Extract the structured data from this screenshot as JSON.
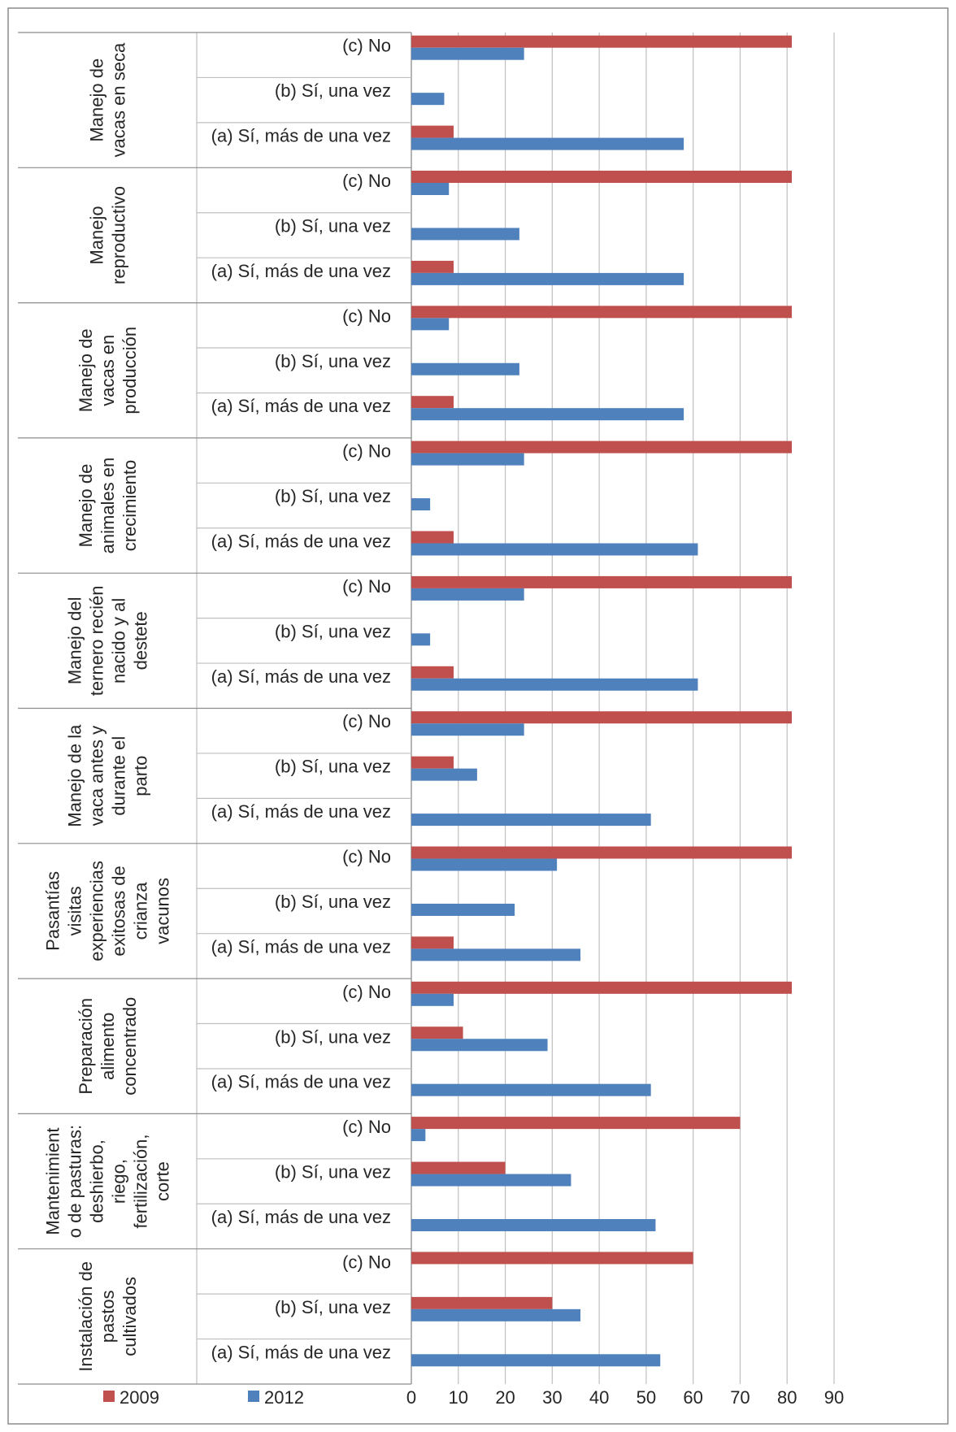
{
  "chart_data": {
    "type": "bar",
    "orientation": "horizontal",
    "xlim": [
      0,
      90
    ],
    "x_ticks": [
      "0",
      "10",
      "20",
      "30",
      "40",
      "50",
      "60",
      "70",
      "80",
      "90"
    ],
    "grid": "vertical",
    "legend_position": "bottom-left",
    "colors": {
      "2009": "#c0504d",
      "2012": "#4f81bd"
    },
    "subcategories": [
      "(c) No",
      "(b) Sí, una vez",
      "(a) Sí, más de una vez"
    ],
    "groups": [
      {
        "label_lines": [
          "Manejo de",
          "vacas en seca"
        ],
        "values": {
          "2009": [
            81,
            0,
            9
          ],
          "2012": [
            24,
            7,
            58
          ]
        }
      },
      {
        "label_lines": [
          "Manejo",
          "reproductivo"
        ],
        "values": {
          "2009": [
            81,
            0,
            9
          ],
          "2012": [
            8,
            23,
            58
          ]
        }
      },
      {
        "label_lines": [
          "Manejo de",
          "vacas en",
          "producción"
        ],
        "values": {
          "2009": [
            81,
            0,
            9
          ],
          "2012": [
            8,
            23,
            58
          ]
        }
      },
      {
        "label_lines": [
          "Manejo de",
          "animales en",
          "crecimiento"
        ],
        "values": {
          "2009": [
            81,
            0,
            9
          ],
          "2012": [
            24,
            4,
            61
          ]
        }
      },
      {
        "label_lines": [
          "Manejo del",
          "ternero recién",
          "nacido y al",
          "destete"
        ],
        "values": {
          "2009": [
            81,
            0,
            9
          ],
          "2012": [
            24,
            4,
            61
          ]
        }
      },
      {
        "label_lines": [
          "Manejo de la",
          "vaca antes y",
          "durante el",
          "parto"
        ],
        "values": {
          "2009": [
            81,
            9,
            0
          ],
          "2012": [
            24,
            14,
            51
          ]
        }
      },
      {
        "label_lines": [
          "Pasantías",
          "visitas",
          "experiencias",
          "exitosas de",
          "crianza",
          "vacunos"
        ],
        "values": {
          "2009": [
            81,
            0,
            9
          ],
          "2012": [
            31,
            22,
            36
          ]
        }
      },
      {
        "label_lines": [
          "Preparación",
          "alimento",
          "concentrado"
        ],
        "values": {
          "2009": [
            81,
            11,
            0
          ],
          "2012": [
            9,
            29,
            51
          ]
        }
      },
      {
        "label_lines": [
          "Mantenimient",
          "o de pasturas:",
          "deshierbo,",
          "riego,",
          "fertilización,",
          "corte"
        ],
        "values": {
          "2009": [
            70,
            20,
            0
          ],
          "2012": [
            3,
            34,
            52
          ]
        }
      },
      {
        "label_lines": [
          "Instalación de",
          "pastos",
          "cultivados"
        ],
        "values": {
          "2009": [
            60,
            30,
            0
          ],
          "2012": [
            0,
            36,
            53
          ]
        }
      }
    ],
    "series": [
      {
        "name": "2009"
      },
      {
        "name": "2012"
      }
    ]
  }
}
